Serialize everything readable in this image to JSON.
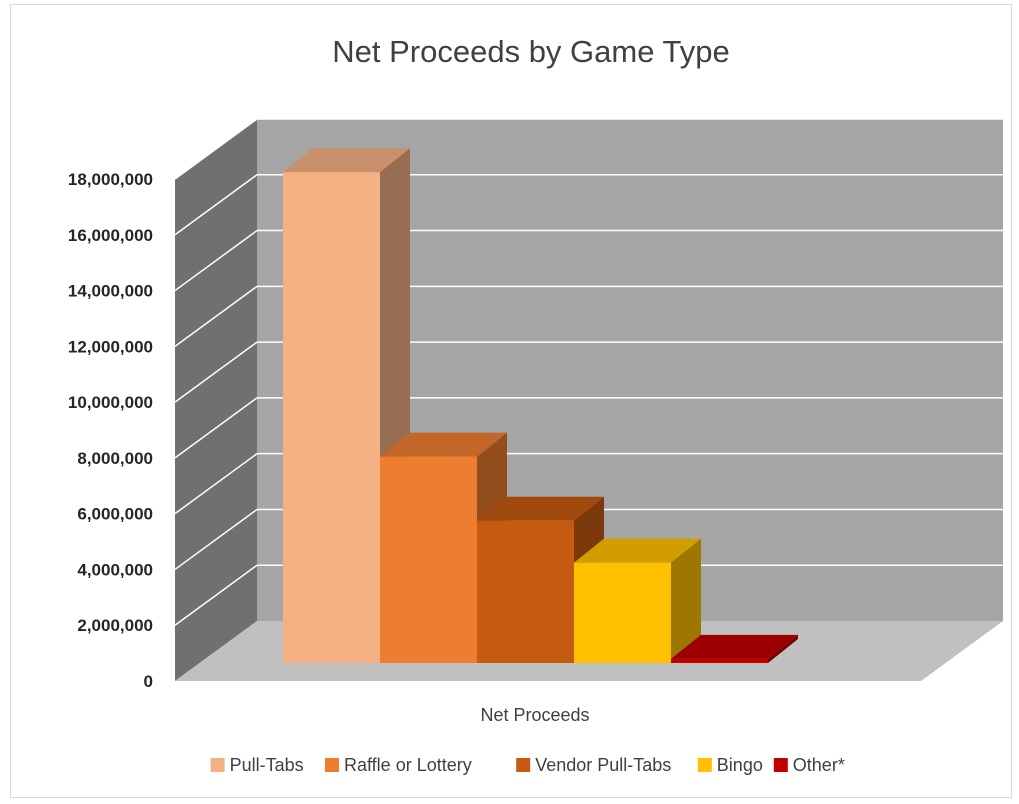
{
  "chart_data": {
    "type": "bar",
    "title": "Net Proceeds by Game Type",
    "categories": [
      "Net Proceeds"
    ],
    "series": [
      {
        "name": "Pull-Tabs",
        "values": [
          17600000
        ],
        "color": "#F4B183"
      },
      {
        "name": "Raffle or Lottery",
        "values": [
          7400000
        ],
        "color": "#ED7D31"
      },
      {
        "name": "Vendor Pull-Tabs",
        "values": [
          5100000
        ],
        "color": "#C55A11"
      },
      {
        "name": "Bingo",
        "values": [
          3600000
        ],
        "color": "#FFC000"
      },
      {
        "name": "Other*",
        "values": [
          150000
        ],
        "color": "#C00000"
      }
    ],
    "y_ticks": [
      "0",
      "2,000,000",
      "4,000,000",
      "6,000,000",
      "8,000,000",
      "10,000,000",
      "12,000,000",
      "14,000,000",
      "16,000,000",
      "18,000,000"
    ],
    "ylim": [
      0,
      18000000
    ],
    "grid": true,
    "legend_position": "bottom",
    "three_d": true,
    "colors": {
      "back_wall": "#A5A5A5",
      "side_wall": "#707070",
      "floor": "#C0C0C0",
      "gridline": "#FFFFFF"
    }
  }
}
